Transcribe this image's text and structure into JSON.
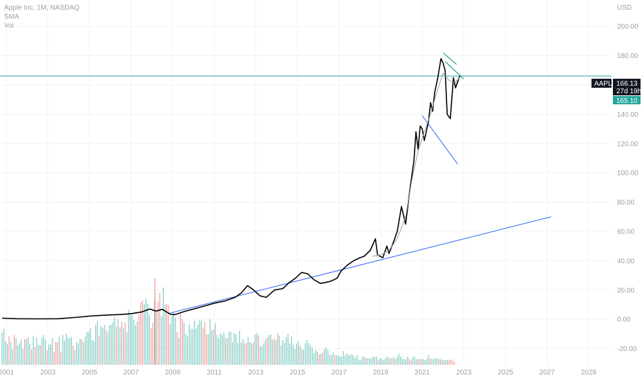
{
  "legend": {
    "title": "Apple Inc, 1M, NASDAQ",
    "indicator1": "SMA",
    "indicator2": "Vol"
  },
  "price_scale": {
    "unit": "USD"
  },
  "price_tag": {
    "symbol": "AAPL",
    "price": "166.13",
    "countdown": "27d 19h",
    "sma_value": "165.10"
  },
  "colors": {
    "price_line": "#000000",
    "sma_line": "#9e9e9e",
    "horizontal_line": "#26a69a",
    "uptrend_line": "#2962ff",
    "channel_line": "#00897b",
    "volume_up": "#26a69a",
    "volume_down": "#ef5350",
    "grid": "#f2f3f5",
    "sma_tag": "#26a69a"
  },
  "chart_data": {
    "type": "line",
    "title": "Apple Inc, 1M, NASDAQ",
    "ylabel": "USD",
    "ylim": [
      -32,
      218
    ],
    "xlim": [
      2000.7,
      2030.1
    ],
    "yticks": [
      -20,
      0,
      20,
      40,
      60,
      80,
      100,
      120,
      140,
      160,
      180,
      200
    ],
    "yticks_labels": [
      "-20.00",
      "0.00",
      "20.00",
      "40.00",
      "60.00",
      "80.00",
      "100.00",
      "120.00",
      "140.00",
      "160.00",
      "180.00",
      "200.00"
    ],
    "xticks": [
      2001,
      2003,
      2005,
      2007,
      2009,
      2011,
      2013,
      2015,
      2017,
      2019,
      2021,
      2023,
      2025,
      2027,
      2029
    ],
    "xticks_labels": [
      "2001",
      "2003",
      "2005",
      "2007",
      "2009",
      "2011",
      "2013",
      "2015",
      "2017",
      "2019",
      "2021",
      "2023",
      "2025",
      "2027",
      "2029"
    ],
    "grid": true,
    "series": [
      {
        "name": "AAPL",
        "x": [
          2000.8,
          2001.5,
          2002.5,
          2003.5,
          2004.5,
          2005.0,
          2005.5,
          2006.0,
          2006.5,
          2007.0,
          2007.5,
          2007.9,
          2008.2,
          2008.5,
          2008.9,
          2009.1,
          2009.6,
          2010.0,
          2010.5,
          2011.0,
          2011.5,
          2012.0,
          2012.3,
          2012.6,
          2012.9,
          2013.2,
          2013.5,
          2013.9,
          2014.3,
          2014.6,
          2014.9,
          2015.2,
          2015.5,
          2015.8,
          2016.1,
          2016.3,
          2016.6,
          2016.9,
          2017.1,
          2017.4,
          2017.7,
          2018.0,
          2018.2,
          2018.5,
          2018.75,
          2018.85,
          2019.1,
          2019.3,
          2019.4,
          2019.6,
          2019.8,
          2020.0,
          2020.2,
          2020.4,
          2020.6,
          2020.7,
          2020.8,
          2020.9,
          2021.0,
          2021.1,
          2021.3,
          2021.4,
          2021.5,
          2021.6,
          2021.75,
          2021.9,
          2022.0,
          2022.1,
          2022.2,
          2022.35,
          2022.5,
          2022.6,
          2022.7,
          2022.8
        ],
        "values": [
          0.8,
          0.4,
          0.3,
          0.4,
          1.5,
          2.2,
          2.6,
          3.0,
          3.3,
          3.8,
          5.0,
          7.0,
          5.6,
          6.8,
          3.4,
          3.2,
          5.5,
          7.0,
          9.0,
          11.0,
          12.5,
          15.0,
          18.0,
          23.0,
          20.0,
          16.0,
          15.0,
          20.0,
          21.0,
          25.0,
          28.0,
          32.0,
          31.0,
          27.0,
          24.5,
          25.0,
          26.0,
          28.0,
          33.0,
          37.0,
          40.0,
          42.0,
          43.0,
          47.0,
          55.0,
          44.0,
          42.0,
          50.0,
          45.0,
          52.0,
          60.0,
          77.0,
          65.0,
          88.0,
          108.0,
          128.0,
          116.0,
          132.0,
          130.0,
          122.0,
          135.0,
          148.0,
          142.0,
          155.0,
          165.0,
          178.0,
          175.0,
          170.0,
          140.0,
          137.0,
          165.0,
          158.0,
          162.0,
          166.13
        ]
      },
      {
        "name": "SMA",
        "x": [
          2018.6,
          2019.0,
          2019.4,
          2019.8,
          2020.2,
          2020.5,
          2020.8,
          2021.1,
          2021.4,
          2021.7,
          2022.0,
          2022.3,
          2022.6,
          2022.8
        ],
        "values": [
          43.0,
          44.0,
          47.0,
          55.0,
          70.0,
          95.0,
          115.0,
          128.0,
          140.0,
          155.0,
          168.0,
          163.0,
          162.0,
          165.1
        ]
      }
    ],
    "volume": {
      "start_year": 2000.8,
      "step_years": 0.0833,
      "values": [
        46,
        52,
        34,
        30,
        41,
        33,
        22,
        43,
        38,
        28,
        31,
        36,
        23,
        37,
        37,
        40,
        30,
        22,
        42,
        26,
        40,
        29,
        29,
        39,
        43,
        37,
        21,
        29,
        30,
        39,
        19,
        33,
        33,
        41,
        19,
        43,
        35,
        45,
        39,
        38,
        40,
        28,
        21,
        33,
        31,
        38,
        37,
        33,
        41,
        48,
        48,
        53,
        36,
        34,
        58,
        64,
        42,
        56,
        53,
        58,
        51,
        47,
        57,
        58,
        62,
        69,
        55,
        66,
        54,
        62,
        53,
        61,
        47,
        80,
        72,
        72,
        65,
        57,
        63,
        73,
        90,
        93,
        88,
        96,
        88,
        72,
        53,
        61,
        94,
        76,
        92,
        104,
        70,
        112,
        87,
        88,
        86,
        59,
        71,
        76,
        68,
        47,
        39,
        76,
        66,
        61,
        45,
        41,
        59,
        52,
        52,
        64,
        53,
        58,
        65,
        64,
        54,
        62,
        44,
        44,
        66,
        50,
        51,
        60,
        43,
        38,
        46,
        43,
        47,
        38,
        39,
        48,
        48,
        33,
        46,
        44,
        32,
        49,
        32,
        37,
        31,
        32,
        40,
        33,
        31,
        32,
        44,
        46,
        43,
        27,
        27,
        31,
        36,
        40,
        43,
        44,
        36,
        38,
        36,
        46,
        42,
        28,
        36,
        32,
        40,
        45,
        31,
        41,
        29,
        23,
        31,
        34,
        27,
        23,
        22,
        31,
        36,
        31,
        28,
        25,
        17,
        22,
        19,
        15,
        16,
        18,
        23,
        25,
        21,
        15,
        14,
        18,
        14,
        14,
        13,
        12,
        12,
        20,
        13,
        17,
        14,
        15,
        15,
        13,
        10,
        14,
        7,
        7,
        12,
        11,
        10,
        9,
        10,
        9,
        12,
        11,
        12,
        7,
        9,
        9,
        7,
        9,
        12,
        10,
        10,
        9,
        11,
        8,
        11,
        16,
        12,
        9,
        8,
        8,
        12,
        9,
        6,
        11,
        12,
        8,
        8,
        9,
        8,
        8,
        7,
        8,
        14,
        9,
        9,
        8,
        10,
        9,
        8,
        8,
        7,
        7,
        7,
        7,
        7,
        8,
        6,
        5
      ],
      "down": [
        4,
        7,
        13,
        17,
        19,
        22,
        26,
        30,
        31,
        32,
        34,
        41,
        46,
        56,
        60,
        66,
        69,
        71,
        79,
        80,
        81,
        86,
        87,
        90,
        91,
        95,
        96,
        101,
        103,
        104,
        116,
        117,
        118,
        122,
        130,
        140,
        141,
        145,
        148,
        153,
        156,
        159,
        172,
        183,
        185,
        192,
        210,
        217,
        224,
        227,
        235,
        236,
        240,
        242,
        247,
        252,
        255,
        258,
        259,
        260,
        261
      ],
      "spike_2008": 28
    },
    "drawings": [
      {
        "name": "horizontal-line",
        "y": 166.13
      },
      {
        "name": "uptrend-line",
        "x": [
          2008.8,
          2027.2
        ],
        "y": [
          4.0,
          70.0
        ]
      },
      {
        "name": "falling-line",
        "x": [
          2021.0,
          2022.7
        ],
        "y": [
          139.0,
          106.0
        ]
      },
      {
        "name": "channel-upper",
        "x": [
          2022.0,
          2022.65
        ],
        "y": [
          182.0,
          174.0
        ]
      },
      {
        "name": "channel-lower",
        "x": [
          2022.1,
          2023.0
        ],
        "y": [
          176.0,
          164.0
        ]
      }
    ]
  }
}
